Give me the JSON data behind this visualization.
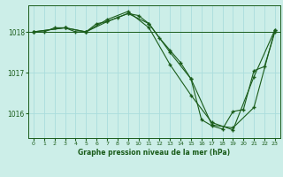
{
  "title": "Graphe pression niveau de la mer (hPa)",
  "bg_color": "#cceee8",
  "grid_color": "#aadddd",
  "line_color": "#1a5c1a",
  "xlim": [
    -0.5,
    23.5
  ],
  "ylim": [
    1015.4,
    1018.65
  ],
  "yticks": [
    1016,
    1017,
    1018
  ],
  "xticks": [
    0,
    1,
    2,
    3,
    4,
    5,
    6,
    7,
    8,
    9,
    10,
    11,
    12,
    13,
    14,
    15,
    16,
    17,
    18,
    19,
    20,
    21,
    22,
    23
  ],
  "line1_x": [
    0,
    1,
    2,
    3,
    4,
    5,
    6,
    7,
    8,
    9,
    10,
    11,
    12,
    13,
    14,
    15,
    16,
    17,
    18,
    19,
    20,
    21,
    22,
    23
  ],
  "line1_y": [
    1018.0,
    1018.0,
    1018.1,
    1018.1,
    1018.0,
    1018.0,
    1018.2,
    1018.25,
    1018.35,
    1018.45,
    1018.4,
    1018.2,
    1017.85,
    1017.55,
    1017.25,
    1016.85,
    1015.85,
    1015.7,
    1015.62,
    1016.05,
    1016.1,
    1017.05,
    1017.15,
    1018.0
  ],
  "line2_x": [
    0,
    3,
    5,
    7,
    9,
    11,
    13,
    15,
    17,
    19,
    21,
    23
  ],
  "line2_y": [
    1018.0,
    1018.1,
    1018.0,
    1018.25,
    1018.45,
    1018.2,
    1017.5,
    1016.85,
    1015.72,
    1015.65,
    1016.15,
    1018.05
  ],
  "line3_x": [
    0,
    3,
    5,
    7,
    9,
    11,
    13,
    15,
    17,
    19,
    21,
    23
  ],
  "line3_y": [
    1018.0,
    1018.1,
    1018.0,
    1018.3,
    1018.5,
    1018.1,
    1017.2,
    1016.45,
    1015.78,
    1015.6,
    1016.9,
    1018.05
  ],
  "hline_y": 1018.0,
  "figwidth": 3.2,
  "figheight": 2.0,
  "dpi": 100
}
